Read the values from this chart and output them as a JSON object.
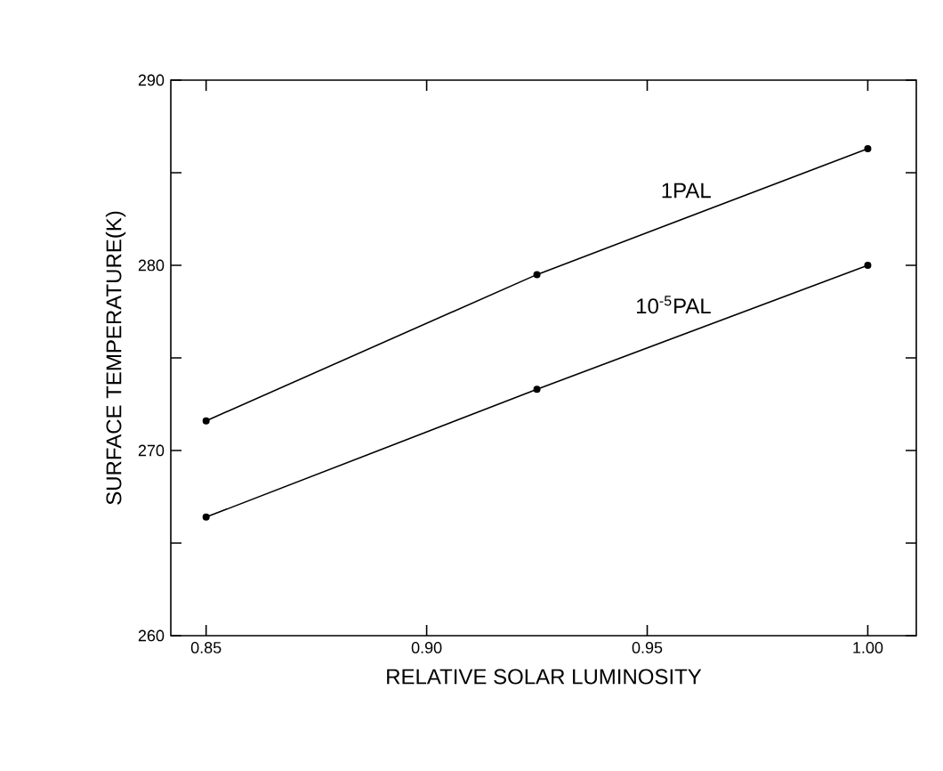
{
  "chart_data": {
    "type": "line",
    "xlabel": "RELATIVE SOLAR LUMINOSITY",
    "ylabel": "SURFACE TEMPERATURE(K)",
    "x": [
      0.85,
      0.925,
      1.0
    ],
    "series": [
      {
        "name": "1PAL",
        "color": "#000000",
        "values": [
          271.6,
          279.5,
          286.3
        ]
      },
      {
        "name": "10$^{-5}$PAL",
        "color": "#000000",
        "values": [
          266.4,
          273.3,
          280.0
        ]
      }
    ],
    "xlim": [
      0.842,
      1.011
    ],
    "ylim": [
      260,
      290
    ],
    "xticks": [
      0.85,
      {
        "value": 0.9,
        "label": "0.90"
      },
      0.95,
      {
        "value": 1.0,
        "label": "1.00"
      }
    ],
    "yticks": [
      260,
      {
        "value": 265,
        "label": null
      },
      270,
      {
        "value": 275,
        "label": null
      },
      280,
      {
        "value": 285,
        "label": null
      },
      290
    ],
    "grid": false,
    "legend": false,
    "marker": "circle",
    "line_style": "solid"
  }
}
